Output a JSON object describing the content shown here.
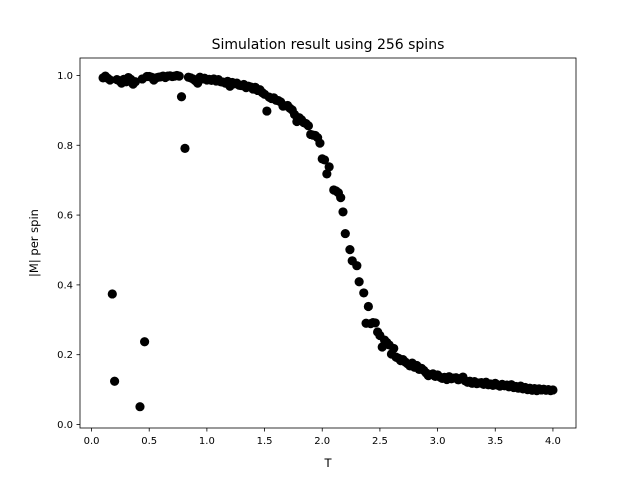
{
  "chart_data": {
    "type": "scatter",
    "title": "Simulation result using 256 spins",
    "xlabel": "T",
    "ylabel": "|M| per spin",
    "xlim": [
      -0.1,
      4.2
    ],
    "ylim": [
      -0.01,
      1.05
    ],
    "xticks": [
      "0.0",
      "0.5",
      "1.0",
      "1.5",
      "2.0",
      "2.5",
      "3.0",
      "3.5",
      "4.0"
    ],
    "xtick_values": [
      0.0,
      0.5,
      1.0,
      1.5,
      2.0,
      2.5,
      3.0,
      3.5,
      4.0
    ],
    "yticks": [
      "0.0",
      "0.2",
      "0.4",
      "0.6",
      "0.8",
      "1.0"
    ],
    "ytick_values": [
      0.0,
      0.2,
      0.4,
      0.6,
      0.8,
      1.0
    ],
    "grid": false,
    "marker_color": "#000000",
    "points": [
      [
        0.1,
        0.993
      ],
      [
        0.12,
        0.998
      ],
      [
        0.14,
        0.992
      ],
      [
        0.16,
        0.987
      ],
      [
        0.18,
        0.374
      ],
      [
        0.2,
        0.124
      ],
      [
        0.22,
        0.988
      ],
      [
        0.24,
        0.985
      ],
      [
        0.26,
        0.978
      ],
      [
        0.28,
        0.989
      ],
      [
        0.3,
        0.982
      ],
      [
        0.32,
        0.994
      ],
      [
        0.34,
        0.989
      ],
      [
        0.36,
        0.975
      ],
      [
        0.38,
        0.982
      ],
      [
        0.42,
        0.051
      ],
      [
        0.44,
        0.99
      ],
      [
        0.46,
        0.237
      ],
      [
        0.48,
        0.997
      ],
      [
        0.5,
        0.997
      ],
      [
        0.52,
        0.995
      ],
      [
        0.54,
        0.987
      ],
      [
        0.56,
        0.993
      ],
      [
        0.58,
        0.995
      ],
      [
        0.6,
        0.996
      ],
      [
        0.62,
        0.998
      ],
      [
        0.64,
        0.994
      ],
      [
        0.66,
        0.998
      ],
      [
        0.68,
        0.999
      ],
      [
        0.7,
        0.997
      ],
      [
        0.72,
        0.998
      ],
      [
        0.74,
        1.0
      ],
      [
        0.76,
        0.998
      ],
      [
        0.78,
        0.939
      ],
      [
        0.81,
        0.791
      ],
      [
        0.84,
        0.995
      ],
      [
        0.86,
        0.993
      ],
      [
        0.88,
        0.99
      ],
      [
        0.9,
        0.985
      ],
      [
        0.92,
        0.978
      ],
      [
        0.94,
        0.995
      ],
      [
        0.96,
        0.99
      ],
      [
        0.98,
        0.992
      ],
      [
        1.0,
        0.987
      ],
      [
        1.02,
        0.989
      ],
      [
        1.04,
        0.986
      ],
      [
        1.06,
        0.99
      ],
      [
        1.08,
        0.984
      ],
      [
        1.1,
        0.988
      ],
      [
        1.12,
        0.982
      ],
      [
        1.14,
        0.981
      ],
      [
        1.16,
        0.978
      ],
      [
        1.18,
        0.983
      ],
      [
        1.2,
        0.969
      ],
      [
        1.22,
        0.98
      ],
      [
        1.24,
        0.976
      ],
      [
        1.26,
        0.978
      ],
      [
        1.28,
        0.972
      ],
      [
        1.3,
        0.971
      ],
      [
        1.32,
        0.974
      ],
      [
        1.34,
        0.965
      ],
      [
        1.36,
        0.969
      ],
      [
        1.38,
        0.967
      ],
      [
        1.4,
        0.961
      ],
      [
        1.42,
        0.966
      ],
      [
        1.44,
        0.957
      ],
      [
        1.46,
        0.959
      ],
      [
        1.48,
        0.951
      ],
      [
        1.5,
        0.946
      ],
      [
        1.52,
        0.898
      ],
      [
        1.54,
        0.938
      ],
      [
        1.56,
        0.934
      ],
      [
        1.58,
        0.936
      ],
      [
        1.6,
        0.929
      ],
      [
        1.62,
        0.928
      ],
      [
        1.64,
        0.924
      ],
      [
        1.66,
        0.912
      ],
      [
        1.68,
        0.913
      ],
      [
        1.7,
        0.914
      ],
      [
        1.72,
        0.906
      ],
      [
        1.74,
        0.901
      ],
      [
        1.76,
        0.888
      ],
      [
        1.78,
        0.868
      ],
      [
        1.8,
        0.879
      ],
      [
        1.82,
        0.873
      ],
      [
        1.84,
        0.865
      ],
      [
        1.86,
        0.862
      ],
      [
        1.88,
        0.856
      ],
      [
        1.9,
        0.831
      ],
      [
        1.92,
        0.829
      ],
      [
        1.94,
        0.828
      ],
      [
        1.96,
        0.822
      ],
      [
        1.98,
        0.806
      ],
      [
        2.0,
        0.761
      ],
      [
        2.02,
        0.758
      ],
      [
        2.04,
        0.718
      ],
      [
        2.06,
        0.738
      ],
      [
        2.1,
        0.672
      ],
      [
        2.12,
        0.669
      ],
      [
        2.14,
        0.664
      ],
      [
        2.16,
        0.65
      ],
      [
        2.18,
        0.609
      ],
      [
        2.2,
        0.547
      ],
      [
        2.24,
        0.501
      ],
      [
        2.26,
        0.469
      ],
      [
        2.3,
        0.455
      ],
      [
        2.32,
        0.409
      ],
      [
        2.36,
        0.377
      ],
      [
        2.38,
        0.29
      ],
      [
        2.4,
        0.338
      ],
      [
        2.42,
        0.289
      ],
      [
        2.44,
        0.292
      ],
      [
        2.46,
        0.291
      ],
      [
        2.48,
        0.265
      ],
      [
        2.5,
        0.255
      ],
      [
        2.52,
        0.222
      ],
      [
        2.54,
        0.242
      ],
      [
        2.56,
        0.235
      ],
      [
        2.58,
        0.228
      ],
      [
        2.6,
        0.202
      ],
      [
        2.62,
        0.218
      ],
      [
        2.64,
        0.193
      ],
      [
        2.66,
        0.19
      ],
      [
        2.68,
        0.183
      ],
      [
        2.7,
        0.186
      ],
      [
        2.72,
        0.179
      ],
      [
        2.74,
        0.174
      ],
      [
        2.76,
        0.168
      ],
      [
        2.78,
        0.176
      ],
      [
        2.8,
        0.164
      ],
      [
        2.82,
        0.169
      ],
      [
        2.84,
        0.158
      ],
      [
        2.86,
        0.161
      ],
      [
        2.88,
        0.155
      ],
      [
        2.9,
        0.148
      ],
      [
        2.92,
        0.14
      ],
      [
        2.94,
        0.143
      ],
      [
        2.96,
        0.145
      ],
      [
        2.98,
        0.138
      ],
      [
        3.0,
        0.142
      ],
      [
        3.02,
        0.136
      ],
      [
        3.04,
        0.132
      ],
      [
        3.06,
        0.135
      ],
      [
        3.08,
        0.129
      ],
      [
        3.1,
        0.137
      ],
      [
        3.12,
        0.131
      ],
      [
        3.14,
        0.133
      ],
      [
        3.16,
        0.134
      ],
      [
        3.18,
        0.128
      ],
      [
        3.2,
        0.132
      ],
      [
        3.22,
        0.136
      ],
      [
        3.24,
        0.125
      ],
      [
        3.26,
        0.121
      ],
      [
        3.28,
        0.124
      ],
      [
        3.3,
        0.118
      ],
      [
        3.32,
        0.123
      ],
      [
        3.34,
        0.117
      ],
      [
        3.36,
        0.119
      ],
      [
        3.38,
        0.12
      ],
      [
        3.4,
        0.115
      ],
      [
        3.42,
        0.121
      ],
      [
        3.44,
        0.114
      ],
      [
        3.46,
        0.116
      ],
      [
        3.48,
        0.112
      ],
      [
        3.5,
        0.118
      ],
      [
        3.52,
        0.113
      ],
      [
        3.54,
        0.11
      ],
      [
        3.56,
        0.115
      ],
      [
        3.58,
        0.111
      ],
      [
        3.6,
        0.113
      ],
      [
        3.62,
        0.108
      ],
      [
        3.64,
        0.114
      ],
      [
        3.66,
        0.106
      ],
      [
        3.68,
        0.109
      ],
      [
        3.7,
        0.104
      ],
      [
        3.72,
        0.11
      ],
      [
        3.74,
        0.102
      ],
      [
        3.76,
        0.106
      ],
      [
        3.78,
        0.1
      ],
      [
        3.8,
        0.104
      ],
      [
        3.82,
        0.098
      ],
      [
        3.84,
        0.103
      ],
      [
        3.86,
        0.097
      ],
      [
        3.88,
        0.102
      ],
      [
        3.9,
        0.099
      ],
      [
        3.92,
        0.101
      ],
      [
        3.94,
        0.098
      ],
      [
        3.96,
        0.1
      ],
      [
        3.98,
        0.097
      ],
      [
        4.0,
        0.099
      ]
    ]
  }
}
